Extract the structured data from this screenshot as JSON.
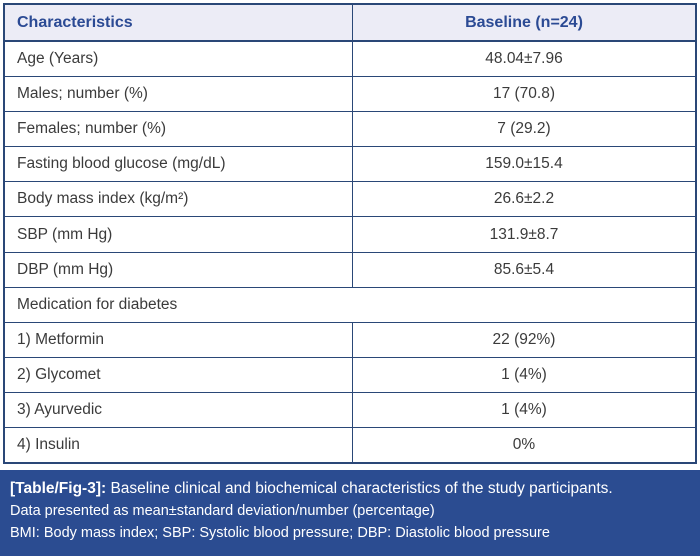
{
  "table": {
    "header": {
      "characteristics": "Characteristics",
      "baseline": "Baseline (n=24)"
    },
    "rows": [
      {
        "label": "Age (Years)",
        "value": "48.04±7.96"
      },
      {
        "label": "Males; number (%)",
        "value": "17 (70.8)"
      },
      {
        "label": "Females; number (%)",
        "value": "7 (29.2)"
      },
      {
        "label": "Fasting blood glucose (mg/dL)",
        "value": "159.0±15.4"
      },
      {
        "label": "Body mass index (kg/m²)",
        "value": "26.6±2.2"
      },
      {
        "label": "SBP (mm Hg)",
        "value": "131.9±8.7"
      },
      {
        "label": "DBP (mm Hg)",
        "value": "85.6±5.4"
      },
      {
        "label": "Medication for diabetes",
        "value": null
      },
      {
        "label": "1) Metformin",
        "value": "22 (92%)"
      },
      {
        "label": "2) Glycomet",
        "value": "1 (4%)"
      },
      {
        "label": "3) Ayurvedic",
        "value": "1 (4%)"
      },
      {
        "label": "4) Insulin",
        "value": "0%"
      }
    ]
  },
  "caption": {
    "tag": "[Table/Fig-3]:",
    "line1": " Baseline clinical and biochemical characteristics of the study participants.",
    "line2": "Data presented as mean±standard deviation/number (percentage)",
    "line3": "BMI: Body mass index; SBP: Systolic blood pressure; DBP: Diastolic blood pressure"
  },
  "colors": {
    "header_text": "#2b4a94",
    "header_bg": "#ececf6",
    "border": "#2a4777",
    "footer_bg": "#2b4c91",
    "row_text": "#3b3b3b"
  }
}
